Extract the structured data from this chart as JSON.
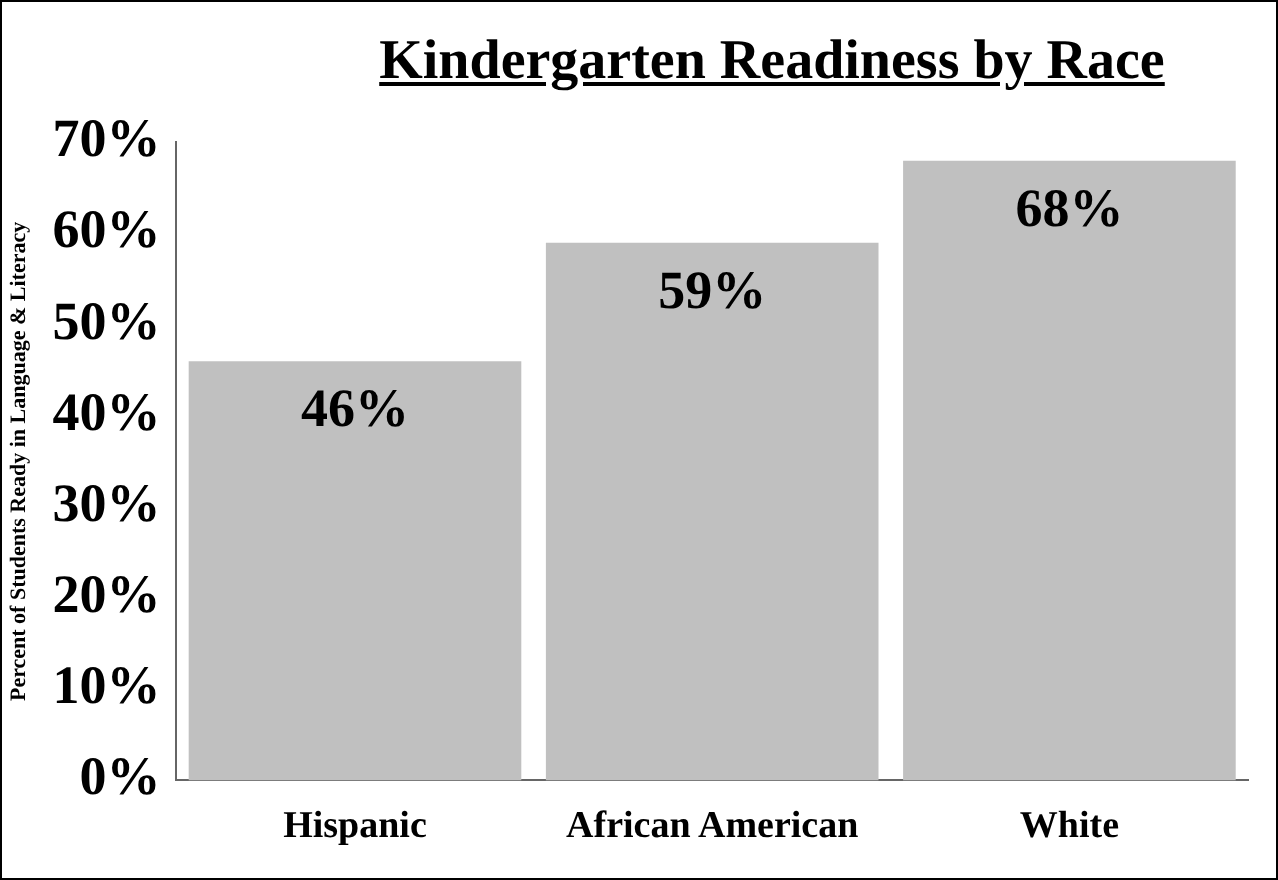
{
  "chart_data": {
    "type": "bar",
    "title": "Kindergarten Readiness by Race",
    "ylabel": "Percent of Students Ready in Language & Literacy",
    "categories": [
      "Hispanic",
      "African American",
      "White"
    ],
    "values": [
      46,
      59,
      68
    ],
    "value_labels": [
      "46%",
      "59%",
      "68%"
    ],
    "color": "#c0c0c0",
    "ylim": [
      0,
      70
    ],
    "yticks": [
      {
        "value": 0,
        "label": "0%"
      },
      {
        "value": 10,
        "label": "10%"
      },
      {
        "value": 20,
        "label": "20%"
      },
      {
        "value": 30,
        "label": "30%"
      },
      {
        "value": 40,
        "label": "40%"
      },
      {
        "value": 50,
        "label": "50%"
      },
      {
        "value": 60,
        "label": "60%"
      },
      {
        "value": 70,
        "label": "70%"
      }
    ],
    "grid": false,
    "legend": false
  }
}
